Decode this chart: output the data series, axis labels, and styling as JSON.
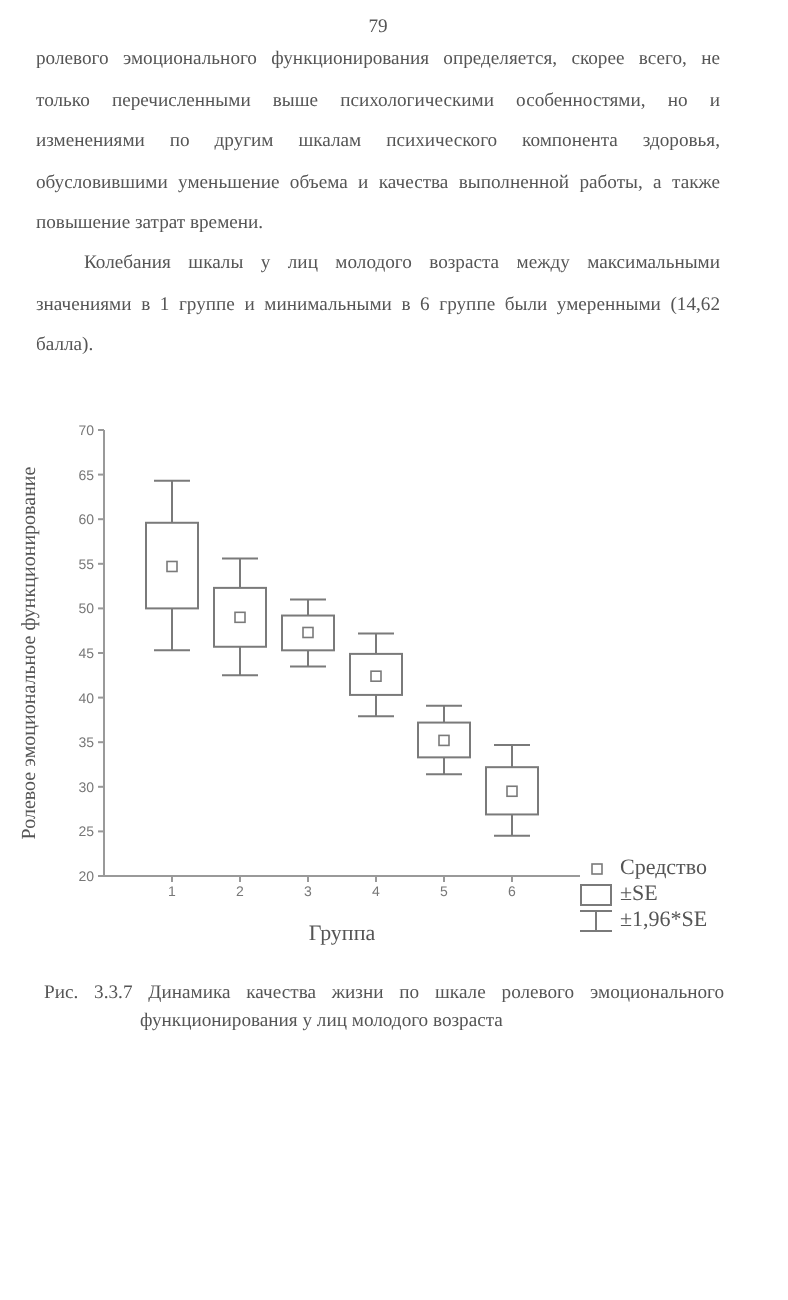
{
  "chart_data": {
    "type": "box",
    "title": "Рис. 3.3.7 Динамика качества жизни по шкале ролевого эмоционального функционирования у лиц молодого возраста",
    "xlabel": "Группа",
    "ylabel": "Ролевое эмоциональное функционирование",
    "x": [
      1,
      2,
      3,
      4,
      5,
      6
    ],
    "xlim": [
      0,
      7
    ],
    "xticks": [
      1,
      2,
      3,
      4,
      5,
      6
    ],
    "ylim": [
      20,
      70
    ],
    "yticks": [
      20,
      25,
      30,
      35,
      40,
      45,
      50,
      55,
      60,
      65,
      70
    ],
    "color": "#7a7a7a",
    "marker": "square",
    "boxes": [
      {
        "low": 45.3,
        "q1": 50.0,
        "median": 54.7,
        "q3": 59.6,
        "high": 64.3
      },
      {
        "low": 42.5,
        "q1": 45.7,
        "median": 49.0,
        "q3": 52.3,
        "high": 55.6
      },
      {
        "low": 43.5,
        "q1": 45.3,
        "median": 47.3,
        "q3": 49.2,
        "high": 51.0
      },
      {
        "low": 37.9,
        "q1": 40.3,
        "median": 42.4,
        "q3": 44.9,
        "high": 47.2
      },
      {
        "low": 31.4,
        "q1": 33.3,
        "median": 35.2,
        "q3": 37.2,
        "high": 39.1
      },
      {
        "low": 24.5,
        "q1": 26.9,
        "median": 29.5,
        "q3": 32.2,
        "high": 34.7
      }
    ],
    "annotations": [
      "79",
      "ролевого эмоционального функционирования определяется, скорее всего, не только перечисленными выше психологическими особенностями, но и изменениями по другим шкалам психического компонента здоровья, обусловившими уменьшение объема и качества выполненной работы, а также повышение затрат времени.",
      "Колебания шкалы у лиц молодого возраста между максимальными значениями в 1 группе и минимальными в 6 группе были умеренными (14,62 балла).",
      "Средство",
      "±SE",
      "±1,96*SE"
    ]
  }
}
